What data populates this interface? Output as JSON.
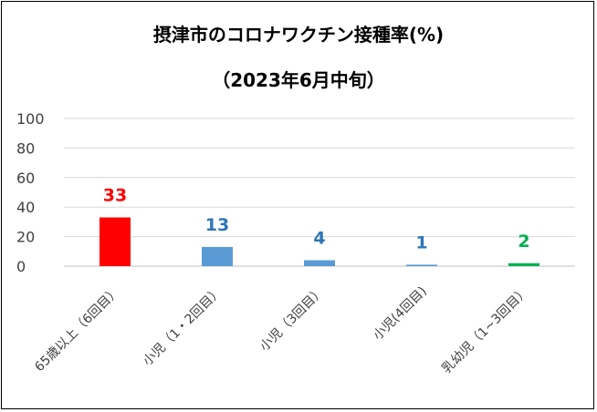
{
  "chart_data": {
    "type": "bar",
    "title": "摂津市のコロナワクチン接種率(%)",
    "subtitle": "（2023年6月中旬）",
    "categories": [
      "65歳以上（6回目）",
      "小児（1・2回目）",
      "小児（3回目）",
      "小児(4回目)",
      "乳幼児（1~3回目）"
    ],
    "values": [
      33,
      13,
      4,
      1,
      2
    ],
    "data_labels": [
      "33",
      "13",
      "4",
      "1",
      "2"
    ],
    "bar_colors": [
      "#ff0000",
      "#5b9bd5",
      "#5b9bd5",
      "#5b9bd5",
      "#00b050"
    ],
    "label_colors": [
      "#ff0000",
      "#2e75b6",
      "#2e75b6",
      "#2e75b6",
      "#00b050"
    ],
    "ylim": [
      0,
      100
    ],
    "yticks": [
      "0",
      "20",
      "40",
      "60",
      "80",
      "100"
    ],
    "grid": true,
    "legend": "none",
    "xlabel": "",
    "ylabel": ""
  }
}
